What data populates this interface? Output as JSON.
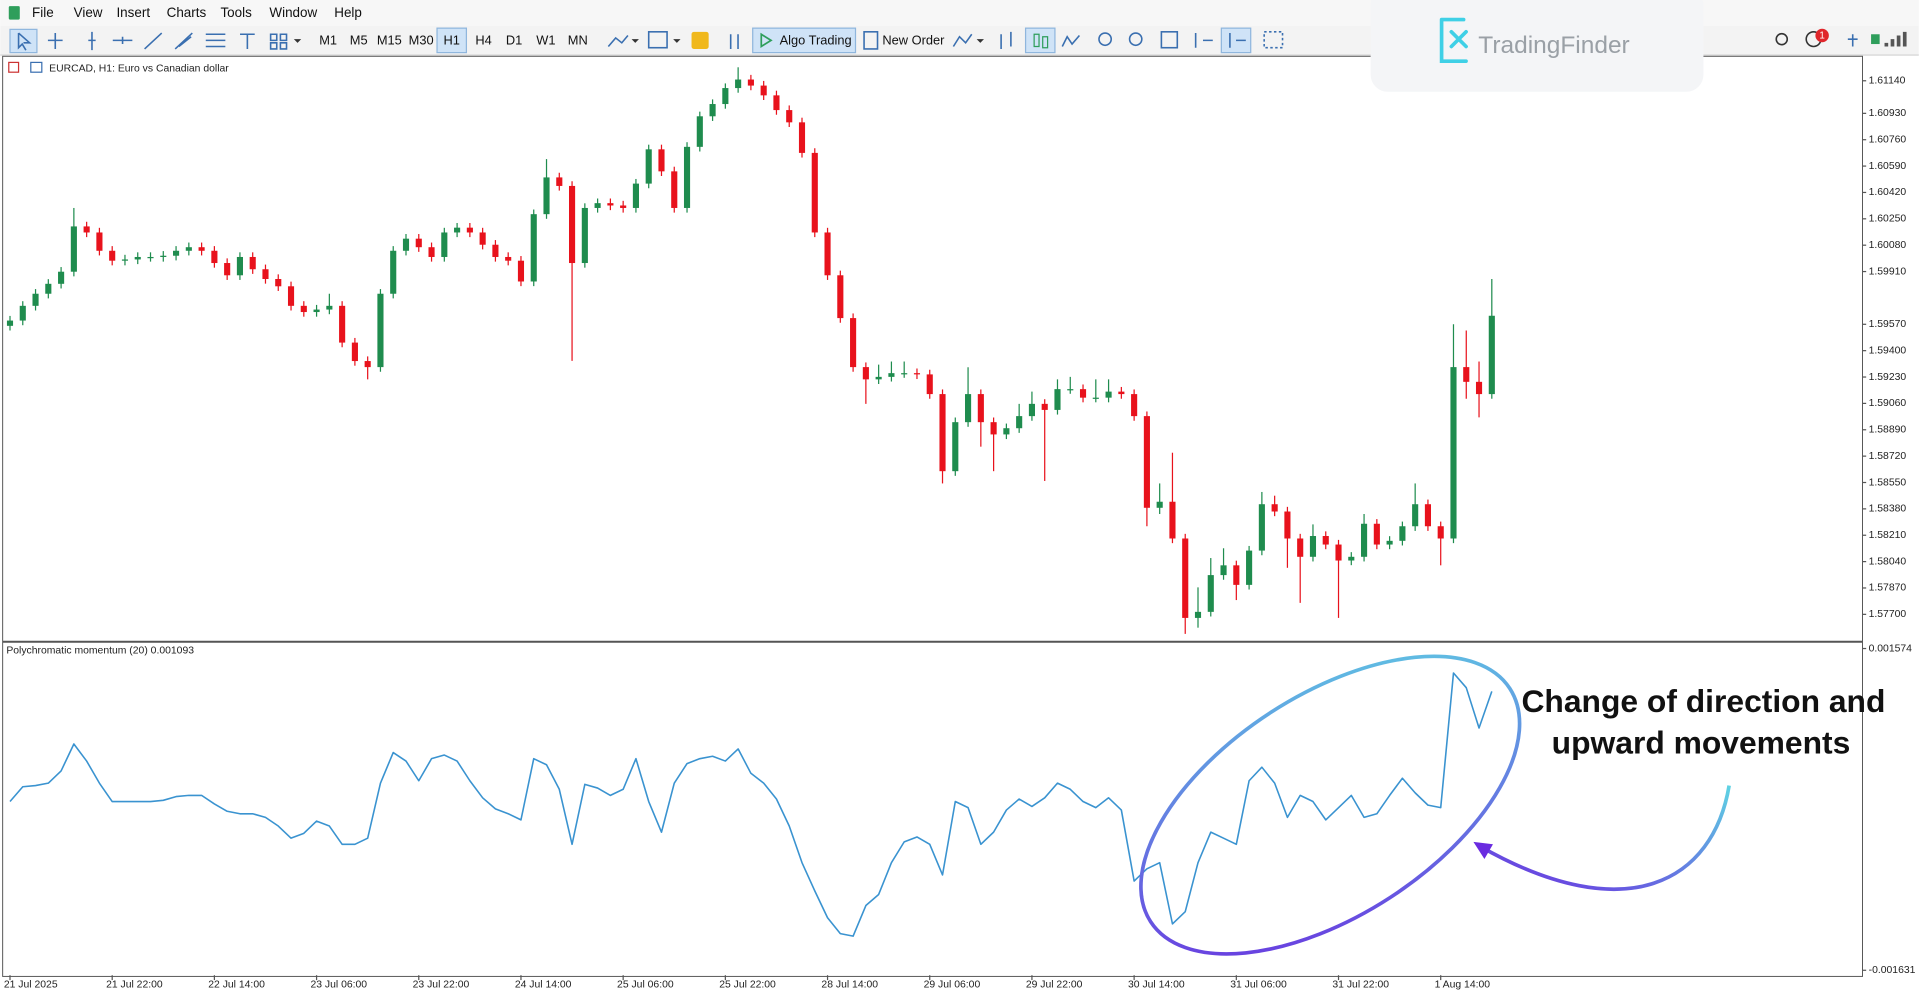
{
  "menu": [
    "File",
    "View",
    "Insert",
    "Charts",
    "Tools",
    "Window",
    "Help"
  ],
  "toolbar": {
    "timeframes": [
      "M1",
      "M5",
      "M15",
      "M30",
      "H1",
      "H4",
      "D1",
      "W1",
      "MN"
    ],
    "active_timeframe": "H1",
    "algo_trading": "Algo Trading",
    "new_order": "New Order"
  },
  "logo": "TradingFinder",
  "notification_count": 1,
  "annotation": [
    "Change of direction and",
    "upward movements"
  ],
  "chart_data": [
    {
      "type": "candlestick",
      "title": "EURCAD, H1:  Euro vs Canadian dollar",
      "up_color": "#1f8c4e",
      "down_color": "#e8121c",
      "grid": false,
      "ylim": [
        1.57535,
        1.6129
      ],
      "yticks": [
        {
          "value": 1.6114,
          "label": "1.61140"
        },
        {
          "value": 1.6093,
          "label": "1.60930"
        },
        {
          "value": 1.6076,
          "label": "1.60760"
        },
        {
          "value": 1.6059,
          "label": "1.60590"
        },
        {
          "value": 1.6042,
          "label": "1.60420"
        },
        {
          "value": 1.6025,
          "label": "1.60250"
        },
        {
          "value": 1.6008,
          "label": "1.60080"
        },
        {
          "value": 1.5991,
          "label": "1.59910"
        },
        {
          "value": 1.5957,
          "label": "1.59570"
        },
        {
          "value": 1.594,
          "label": "1.59400"
        },
        {
          "value": 1.5923,
          "label": "1.59230"
        },
        {
          "value": 1.5906,
          "label": "1.59060"
        },
        {
          "value": 1.5889,
          "label": "1.58890"
        },
        {
          "value": 1.5872,
          "label": "1.58720"
        },
        {
          "value": 1.5855,
          "label": "1.58550"
        },
        {
          "value": 1.5838,
          "label": "1.58380"
        },
        {
          "value": 1.5821,
          "label": "1.58210"
        },
        {
          "value": 1.5804,
          "label": "1.58040"
        },
        {
          "value": 1.5787,
          "label": "1.57870"
        },
        {
          "value": 1.577,
          "label": "1.57700"
        }
      ],
      "categories": [
        "21 Jul 2025",
        null,
        null,
        null,
        null,
        null,
        null,
        null,
        "21 Jul 22:00",
        null,
        null,
        null,
        null,
        null,
        null,
        null,
        "22 Jul 14:00",
        null,
        null,
        null,
        null,
        null,
        null,
        null,
        "23 Jul 06:00",
        null,
        null,
        null,
        null,
        null,
        null,
        null,
        "23 Jul 22:00",
        null,
        null,
        null,
        null,
        null,
        null,
        null,
        "24 Jul 14:00",
        null,
        null,
        null,
        null,
        null,
        null,
        null,
        "25 Jul 06:00",
        null,
        null,
        null,
        null,
        null,
        null,
        null,
        "25 Jul 22:00",
        null,
        null,
        null,
        null,
        null,
        null,
        null,
        "28 Jul 14:00",
        null,
        null,
        null,
        null,
        null,
        null,
        null,
        "29 Jul 06:00",
        null,
        null,
        null,
        null,
        null,
        null,
        null,
        "29 Jul 22:00",
        null,
        null,
        null,
        null,
        null,
        null,
        null,
        "30 Jul 14:00",
        null,
        null,
        null,
        null,
        null,
        null,
        null,
        "31 Jul 06:00",
        null,
        null,
        null,
        null,
        null,
        null,
        null,
        "31 Jul 22:00",
        null,
        null,
        null,
        null,
        null,
        null,
        null,
        "1 Aug 14:00",
        null,
        null,
        null,
        null
      ],
      "open": [
        1.5956,
        1.59594,
        1.59689,
        1.59767,
        1.59831,
        1.59909,
        1.60201,
        1.60162,
        1.60044,
        1.5998,
        1.59988,
        1.60004,
        1.60004,
        1.60012,
        1.60044,
        1.60067,
        1.60044,
        1.59965,
        1.59886,
        1.60004,
        1.59925,
        1.59862,
        1.59815,
        1.59689,
        1.59649,
        1.59665,
        1.59689,
        1.59452,
        1.59333,
        1.59294,
        1.59767,
        1.60044,
        1.60122,
        1.60067,
        1.60004,
        1.60162,
        1.60193,
        1.60162,
        1.60083,
        1.60004,
        1.5998,
        1.59846,
        1.6028,
        1.60517,
        1.60462,
        1.59965,
        1.6032,
        1.60351,
        1.60336,
        1.6032,
        1.60477,
        1.60698,
        1.60556,
        1.6032,
        1.60714,
        1.60911,
        1.6099,
        1.61093,
        1.61148,
        1.61109,
        1.61046,
        1.60951,
        1.60872,
        1.60675,
        1.60162,
        1.59886,
        1.5961,
        1.59294,
        1.59215,
        1.59231,
        1.59255,
        1.59255,
        1.59247,
        1.5912,
        1.58623,
        1.58939,
        1.5912,
        1.58939,
        1.5886,
        1.589,
        1.58978,
        1.59057,
        1.59018,
        1.59152,
        1.59152,
        1.59097,
        1.59097,
        1.59136,
        1.5912,
        1.58978,
        1.58387,
        1.58426,
        1.58189,
        1.57677,
        1.57716,
        1.57953,
        1.58016,
        1.5789,
        1.58111,
        1.5841,
        1.58363,
        1.58189,
        1.58071,
        1.58205,
        1.5815,
        1.58047,
        1.58071,
        1.58284,
        1.5815,
        1.58174,
        1.58268,
        1.5841,
        1.58268,
        1.58189,
        1.59294,
        1.59199,
        1.5912
      ],
      "high": [
        1.59624,
        1.59719,
        1.59797,
        1.59861,
        1.59939,
        1.6032,
        1.60231,
        1.60192,
        1.60074,
        1.60018,
        1.60034,
        1.60034,
        1.60042,
        1.60074,
        1.60097,
        1.60097,
        1.60074,
        1.59995,
        1.60034,
        1.60034,
        1.59955,
        1.59892,
        1.59845,
        1.59719,
        1.59695,
        1.59767,
        1.59719,
        1.59482,
        1.59363,
        1.59797,
        1.60074,
        1.60152,
        1.60152,
        1.60097,
        1.60192,
        1.60223,
        1.60223,
        1.60192,
        1.60113,
        1.60034,
        1.6001,
        1.6031,
        1.60635,
        1.60547,
        1.60492,
        1.6035,
        1.60381,
        1.60381,
        1.60366,
        1.60507,
        1.60728,
        1.60728,
        1.60586,
        1.60744,
        1.60941,
        1.6102,
        1.61123,
        1.61227,
        1.61178,
        1.61139,
        1.61076,
        1.60981,
        1.60902,
        1.60705,
        1.60192,
        1.59916,
        1.5964,
        1.59324,
        1.5931,
        1.5933,
        1.5933,
        1.59285,
        1.59277,
        1.5915,
        1.58969,
        1.59293,
        1.5915,
        1.58969,
        1.5893,
        1.59057,
        1.59136,
        1.59087,
        1.59215,
        1.59231,
        1.59182,
        1.59215,
        1.59215,
        1.59166,
        1.5915,
        1.59008,
        1.58544,
        1.58742,
        1.58219,
        1.57874,
        1.58063,
        1.58126,
        1.58046,
        1.58141,
        1.58489,
        1.58465,
        1.58393,
        1.58219,
        1.5828,
        1.58235,
        1.5818,
        1.58101,
        1.58347,
        1.58314,
        1.58204,
        1.58298,
        1.58544,
        1.5844,
        1.58298,
        1.5957,
        1.5953,
        1.5933,
        1.59862
      ],
      "low": [
        1.5953,
        1.59564,
        1.59659,
        1.59737,
        1.59801,
        1.59879,
        1.60132,
        1.60014,
        1.5995,
        1.5995,
        1.59958,
        1.59974,
        1.59974,
        1.59982,
        1.60014,
        1.60014,
        1.59935,
        1.59856,
        1.59856,
        1.59895,
        1.59832,
        1.59785,
        1.59659,
        1.59619,
        1.59619,
        1.59635,
        1.59422,
        1.59303,
        1.59215,
        1.59264,
        1.59737,
        1.60014,
        1.60037,
        1.59974,
        1.59974,
        1.60132,
        1.60132,
        1.60053,
        1.59974,
        1.5995,
        1.59816,
        1.59816,
        1.6025,
        1.60432,
        1.59334,
        1.59935,
        1.6029,
        1.60306,
        1.6029,
        1.6029,
        1.60447,
        1.60526,
        1.6029,
        1.6029,
        1.60684,
        1.60881,
        1.6096,
        1.61063,
        1.61079,
        1.61016,
        1.60921,
        1.60842,
        1.60645,
        1.60132,
        1.59856,
        1.5958,
        1.59264,
        1.59057,
        1.59185,
        1.59201,
        1.59225,
        1.59217,
        1.5909,
        1.58544,
        1.58593,
        1.58909,
        1.58781,
        1.58623,
        1.5883,
        1.5887,
        1.58948,
        1.5856,
        1.58988,
        1.59122,
        1.59067,
        1.59067,
        1.59067,
        1.5909,
        1.58948,
        1.58268,
        1.58347,
        1.58159,
        1.57574,
        1.57614,
        1.57686,
        1.57923,
        1.57792,
        1.5786,
        1.58081,
        1.58333,
        1.58,
        1.57774,
        1.58041,
        1.5812,
        1.57677,
        1.58017,
        1.58041,
        1.5812,
        1.5812,
        1.58144,
        1.58238,
        1.58238,
        1.58016,
        1.58159,
        1.5909,
        1.5897,
        1.5909
      ],
      "close": [
        1.59594,
        1.59689,
        1.59767,
        1.59831,
        1.59909,
        1.60201,
        1.60162,
        1.60044,
        1.5998,
        1.59988,
        1.60004,
        1.60004,
        1.60012,
        1.60044,
        1.60067,
        1.60044,
        1.59965,
        1.59886,
        1.60004,
        1.59925,
        1.59862,
        1.59815,
        1.59689,
        1.59649,
        1.59665,
        1.59689,
        1.59452,
        1.59333,
        1.59294,
        1.59767,
        1.60044,
        1.60122,
        1.60067,
        1.60004,
        1.60162,
        1.60193,
        1.60162,
        1.60083,
        1.60004,
        1.5998,
        1.59846,
        1.6028,
        1.60517,
        1.60462,
        1.59965,
        1.6032,
        1.60351,
        1.60336,
        1.6032,
        1.60477,
        1.60698,
        1.60556,
        1.6032,
        1.60714,
        1.60911,
        1.6099,
        1.61093,
        1.61148,
        1.61109,
        1.61046,
        1.60951,
        1.60872,
        1.60675,
        1.60162,
        1.59886,
        1.5961,
        1.59294,
        1.59215,
        1.59231,
        1.59255,
        1.59255,
        1.59247,
        1.5912,
        1.58623,
        1.58939,
        1.5912,
        1.58939,
        1.5886,
        1.589,
        1.58978,
        1.59057,
        1.59018,
        1.59152,
        1.59152,
        1.59097,
        1.59097,
        1.59136,
        1.5912,
        1.58978,
        1.58387,
        1.58426,
        1.58189,
        1.57677,
        1.57716,
        1.57953,
        1.58016,
        1.5789,
        1.58111,
        1.5841,
        1.58363,
        1.58189,
        1.58071,
        1.58205,
        1.5815,
        1.58047,
        1.58071,
        1.58284,
        1.5815,
        1.58174,
        1.58268,
        1.5841,
        1.58268,
        1.58189,
        1.59294,
        1.59199,
        1.5912,
        1.59625
      ]
    },
    {
      "type": "line",
      "title": "Polychromatic momentum (20) 0.001093",
      "color": "#3a93d0",
      "grid": false,
      "ylim": [
        -0.00168,
        0.001623
      ],
      "yticks": [
        0.001574,
        -0.001631
      ],
      "values": [
        5e-05,
        0.000197,
        0.000209,
        0.000233,
        0.000355,
        0.000623,
        0.000453,
        0.000233,
        5e-05,
        5e-05,
        5e-05,
        5e-05,
        6.2e-05,
        9.9e-05,
        0.000111,
        0.000111,
        2.6e-05,
        -4.7e-05,
        -7.2e-05,
        -7.2e-05,
        -0.000108,
        -0.000194,
        -0.000315,
        -0.000267,
        -0.000145,
        -0.000194,
        -0.000376,
        -0.000376,
        -0.000315,
        0.000233,
        0.000538,
        0.000453,
        0.000257,
        0.000477,
        0.000513,
        0.000453,
        0.000257,
        8.7e-05,
        -2.3e-05,
        -7.2e-05,
        -0.000133,
        0.000477,
        0.000416,
        0.000172,
        -0.000376,
        0.000221,
        0.000184,
        0.000111,
        0.000172,
        0.000477,
        5e-05,
        -0.000255,
        0.000233,
        0.000428,
        0.000477,
        0.000501,
        0.000453,
        0.000574,
        0.000331,
        0.000233,
        7.5e-05,
        -0.000194,
        -0.000559,
        -0.00084,
        -0.001108,
        -0.001266,
        -0.001291,
        -0.000986,
        -0.000876,
        -0.000559,
        -0.000352,
        -0.000303,
        -0.000376,
        -0.000681,
        5e-05,
        -1.1e-05,
        -0.000376,
        -0.000255,
        -3.5e-05,
        7.5e-05,
        1e-06,
        8.7e-05,
        0.000233,
        0.000172,
        5e-05,
        -1.1e-05,
        8.7e-05,
        -3.5e-05,
        -0.000742,
        -0.00062,
        -0.000559,
        -0.001169,
        -0.001047,
        -0.000559,
        -0.000255,
        -0.000315,
        -0.000376,
        0.000257,
        0.000392,
        0.000233,
        -0.000108,
        0.000111,
        5e-05,
        -0.000133,
        -1.1e-05,
        0.000111,
        -0.000108,
        -7.2e-05,
        0.000111,
        0.000282,
        0.000136,
        1.4e-05,
        -1.1e-05,
        0.00133,
        0.001184,
        0.000782,
        0.001147
      ]
    }
  ]
}
